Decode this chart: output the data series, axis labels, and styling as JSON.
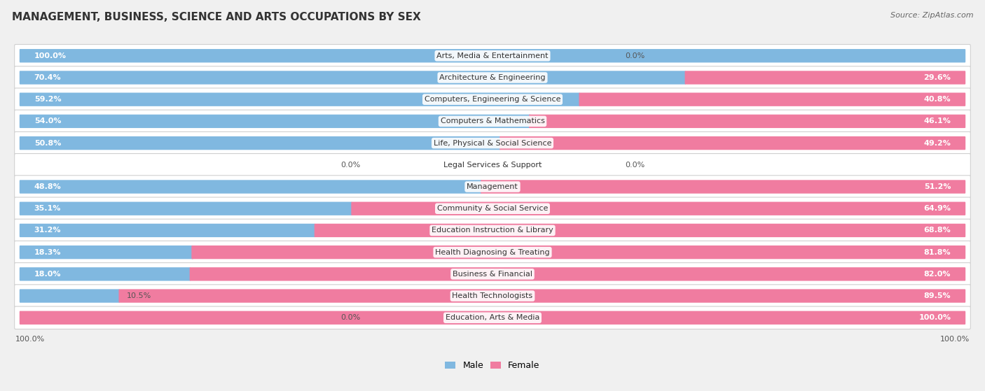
{
  "title": "MANAGEMENT, BUSINESS, SCIENCE AND ARTS OCCUPATIONS BY SEX",
  "source": "Source: ZipAtlas.com",
  "categories": [
    "Arts, Media & Entertainment",
    "Architecture & Engineering",
    "Computers, Engineering & Science",
    "Computers & Mathematics",
    "Life, Physical & Social Science",
    "Legal Services & Support",
    "Management",
    "Community & Social Service",
    "Education Instruction & Library",
    "Health Diagnosing & Treating",
    "Business & Financial",
    "Health Technologists",
    "Education, Arts & Media"
  ],
  "male": [
    100.0,
    70.4,
    59.2,
    54.0,
    50.8,
    0.0,
    48.8,
    35.1,
    31.2,
    18.3,
    18.0,
    10.5,
    0.0
  ],
  "female": [
    0.0,
    29.6,
    40.8,
    46.1,
    49.2,
    0.0,
    51.2,
    64.9,
    68.8,
    81.8,
    82.0,
    89.5,
    100.0
  ],
  "male_color": "#80b8e0",
  "female_color": "#f07ca0",
  "bg_color": "#f0f0f0",
  "row_bg_color": "#ffffff",
  "row_border_color": "#d0d0d0",
  "title_fontsize": 11,
  "label_fontsize": 8,
  "pct_fontsize": 8,
  "legend_fontsize": 9,
  "source_fontsize": 8
}
